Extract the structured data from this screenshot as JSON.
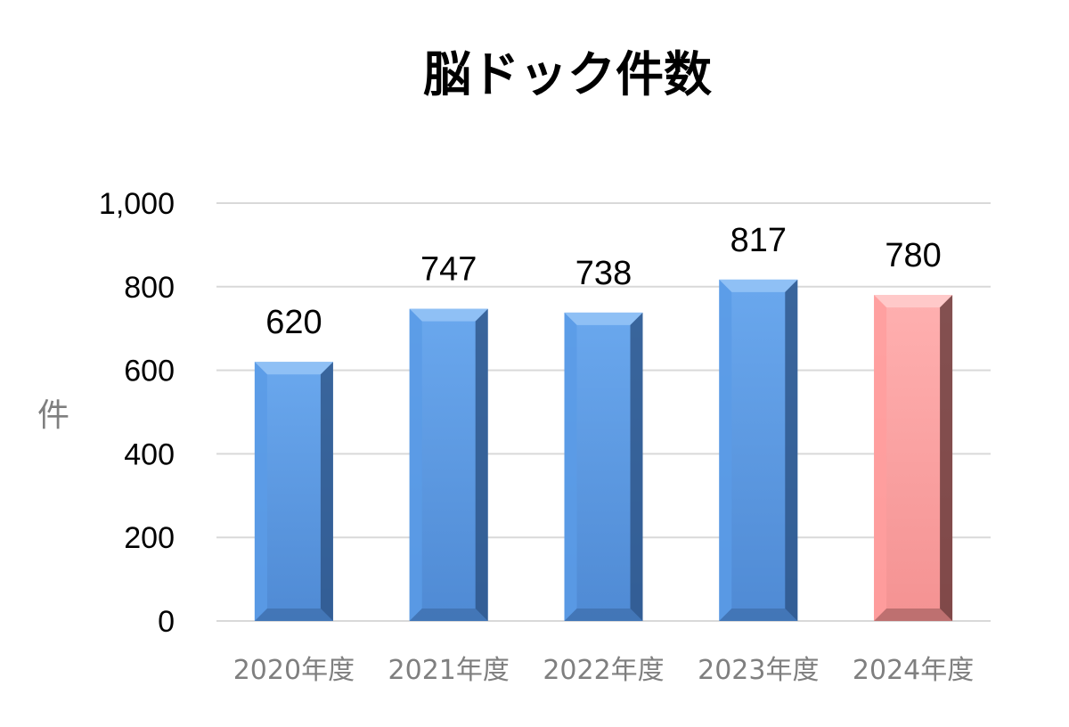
{
  "chart_data": {
    "type": "bar",
    "title": "脳ドック件数",
    "ylabel": "件",
    "xlabel": "",
    "categories": [
      "2020年度",
      "2021年度",
      "2022年度",
      "2023年度",
      "2024年度"
    ],
    "values": [
      620,
      747,
      738,
      817,
      780
    ],
    "data_labels": [
      "620",
      "747",
      "738",
      "817",
      "780"
    ],
    "ylim": [
      0,
      1000
    ],
    "yticks": [
      0,
      200,
      400,
      600,
      800,
      1000
    ],
    "ytick_labels": [
      "0",
      "200",
      "400",
      "600",
      "800",
      "1,000"
    ],
    "grid": true,
    "legend": "none",
    "colors": {
      "default_bar": "#5b9be6",
      "default_bar_top": "#8fc0f5",
      "default_bar_dark": "#2a4f80",
      "highlight_bar": "#ff9e9e",
      "highlight_bar_top": "#ffc9c9",
      "highlight_bar_dark": "#5a3030"
    },
    "highlight_index": 4
  }
}
